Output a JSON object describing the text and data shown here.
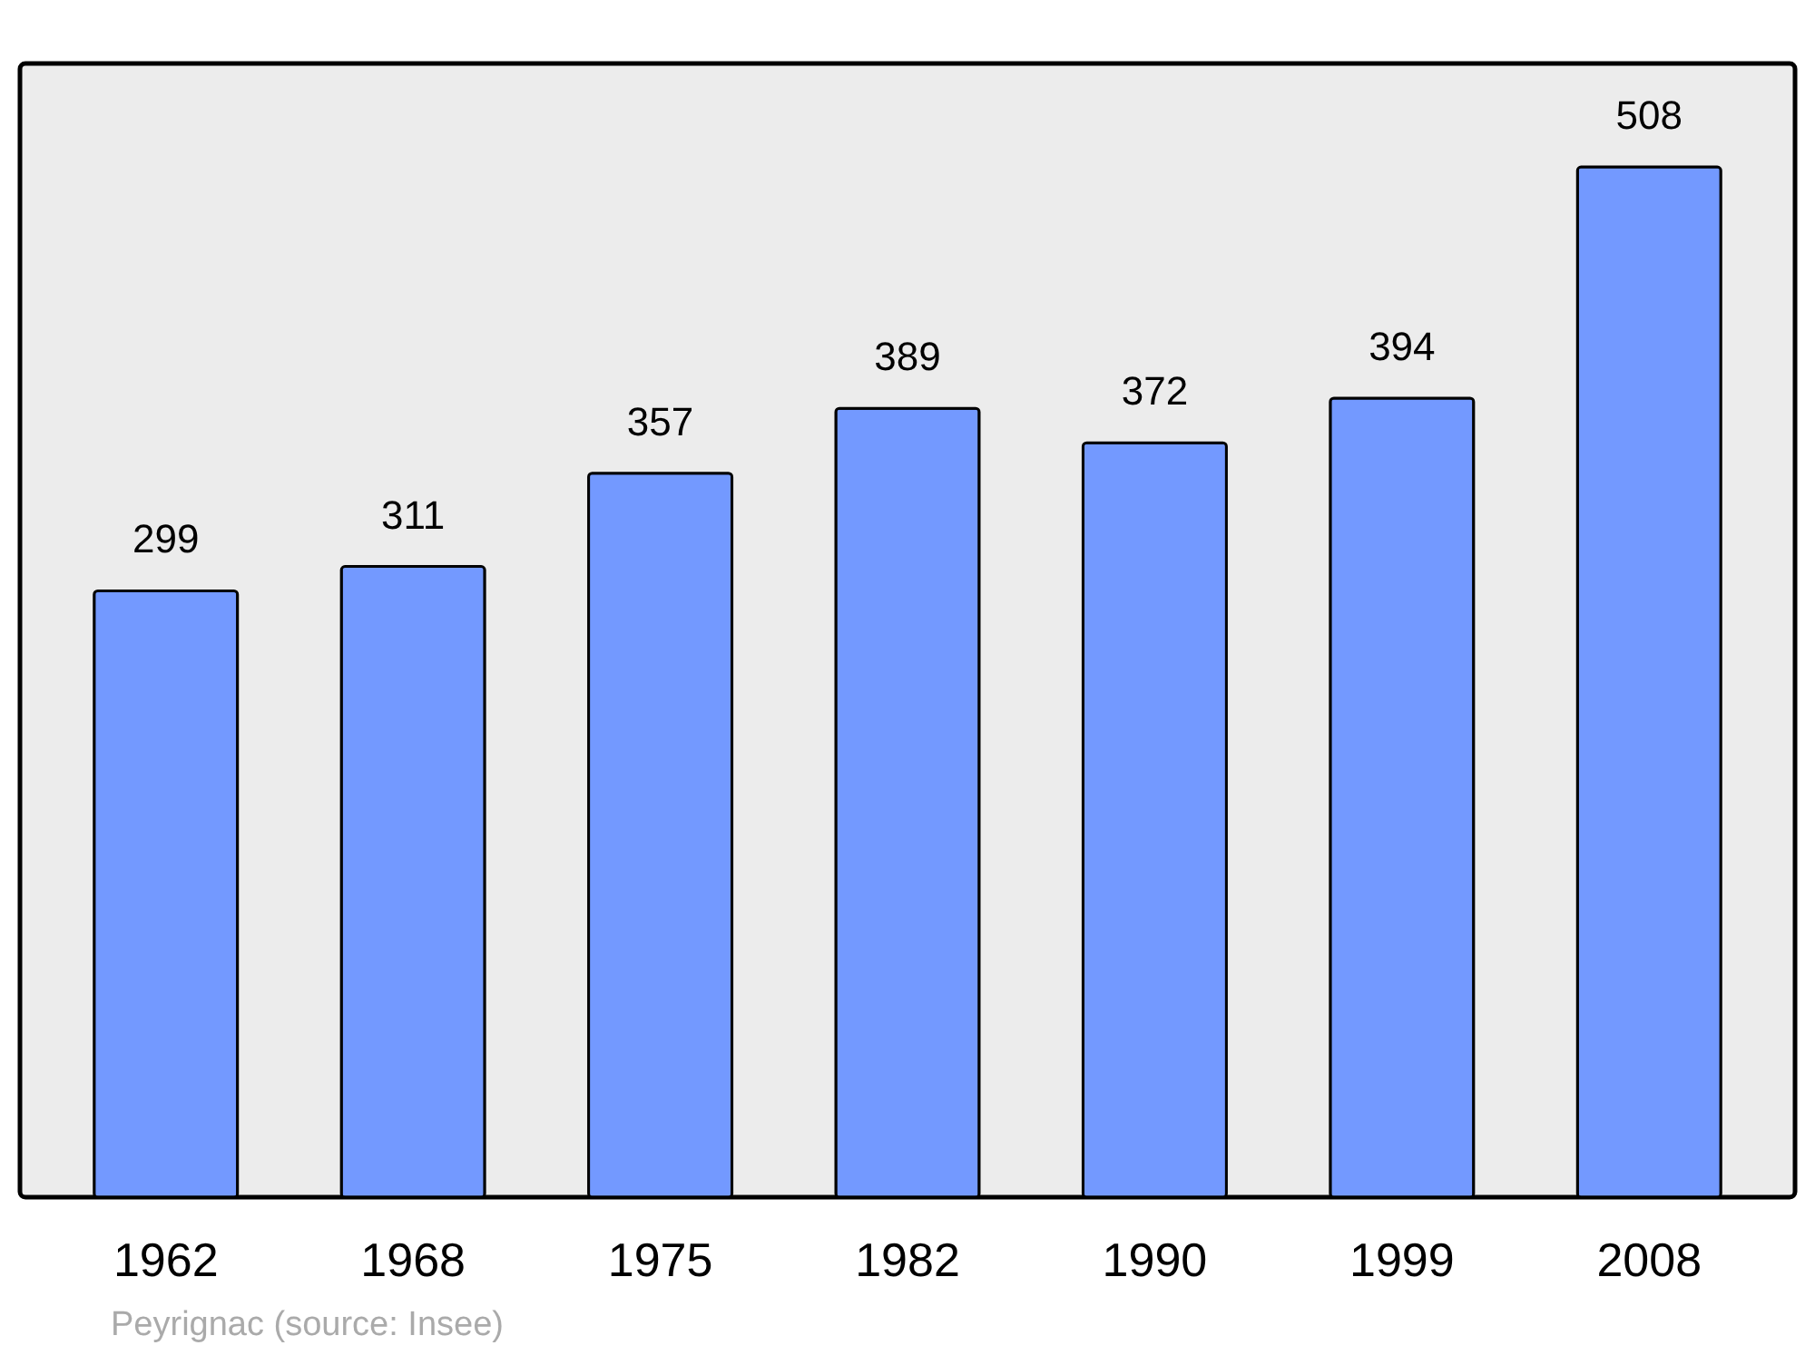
{
  "chart_data": {
    "type": "bar",
    "categories": [
      "1962",
      "1968",
      "1975",
      "1982",
      "1990",
      "1999",
      "2008"
    ],
    "values": [
      299,
      311,
      357,
      389,
      372,
      394,
      508
    ],
    "color": "#7399ff",
    "ylim": [
      0,
      559
    ],
    "data_labels": true,
    "grid": false,
    "annotations": [
      "Peyrignac    (source: Insee)"
    ]
  }
}
